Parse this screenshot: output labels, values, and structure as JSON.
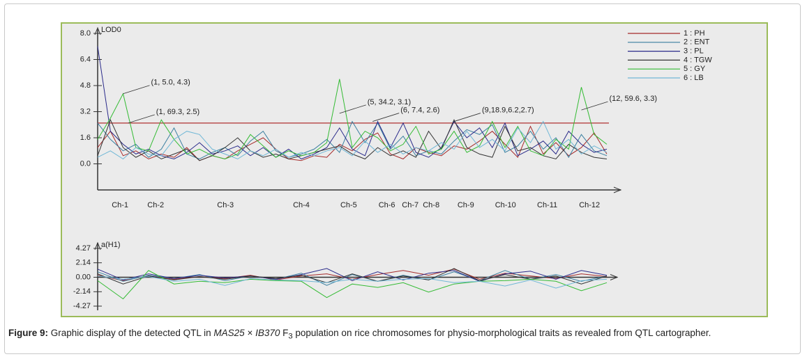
{
  "chart_data": [
    {
      "type": "line",
      "y_label": "LOD0",
      "xlim": [
        0,
        100
      ],
      "ylim": [
        -1.6,
        8.0
      ],
      "yticks": [
        {
          "value": 0,
          "label": "0.0"
        },
        1.6,
        3.2,
        4.8,
        6.4,
        {
          "value": 8,
          "label": "8.0"
        }
      ],
      "xticks": [
        {
          "value": 4.4,
          "label": "Ch-1"
        },
        {
          "value": 11.4,
          "label": "Ch-2"
        },
        {
          "value": 25.1,
          "label": "Ch-3"
        },
        {
          "value": 40,
          "label": "Ch-4"
        },
        {
          "value": 49.3,
          "label": "Ch-5"
        },
        {
          "value": 56.8,
          "label": "Ch-6"
        },
        {
          "value": 61.4,
          "label": "Ch-7"
        },
        {
          "value": 65.5,
          "label": "Ch-8"
        },
        {
          "value": 72.3,
          "label": "Ch-9"
        },
        {
          "value": 80.1,
          "label": "Ch-10"
        },
        {
          "value": 88.3,
          "label": "Ch-11"
        },
        {
          "value": 96.6,
          "label": "Ch-12"
        }
      ],
      "threshold": 2.5,
      "threshold_color": "#b03030",
      "x": [
        0,
        2.5,
        5,
        7.5,
        10,
        12.5,
        15,
        17.5,
        20,
        22.5,
        25,
        27.5,
        30,
        32.5,
        35,
        37.5,
        40,
        42.5,
        45,
        47.5,
        50,
        52.5,
        55,
        57.5,
        60,
        62.5,
        65,
        67.5,
        70,
        72.5,
        75,
        77.5,
        80,
        82.5,
        85,
        87.5,
        90,
        92.5,
        95,
        97.5,
        100
      ],
      "series": [
        {
          "name": "1 : PH",
          "color": "#a52a2a",
          "values": [
            1.0,
            2.0,
            0.5,
            0.8,
            0.3,
            0.6,
            0.4,
            1.0,
            0.2,
            0.5,
            0.3,
            0.8,
            1.2,
            1.6,
            0.9,
            0.3,
            0.2,
            0.5,
            0.4,
            1.2,
            0.8,
            1.5,
            1.9,
            0.6,
            0.3,
            1.0,
            0.7,
            0.5,
            1.1,
            0.9,
            1.4,
            2.0,
            1.2,
            0.4,
            2.3,
            0.6,
            1.3,
            0.5,
            1.0,
            1.9,
            0.6
          ]
        },
        {
          "name": "2 : ENT",
          "color": "#3a7fa0",
          "values": [
            2.5,
            1.5,
            0.8,
            1.2,
            0.4,
            0.9,
            2.2,
            0.6,
            0.3,
            0.7,
            1.0,
            0.5,
            1.4,
            2.0,
            0.8,
            0.4,
            0.6,
            0.9,
            1.5,
            0.7,
            2.6,
            1.3,
            2.5,
            0.9,
            1.7,
            0.5,
            0.8,
            0.6,
            1.4,
            2.1,
            1.8,
            2.4,
            0.7,
            1.1,
            2.0,
            0.9,
            1.6,
            0.4,
            1.8,
            0.8,
            0.5
          ]
        },
        {
          "name": "3 : PL",
          "color": "#2a2a8a",
          "values": [
            7.2,
            2.0,
            1.2,
            0.6,
            0.9,
            0.5,
            0.3,
            0.7,
            1.3,
            0.6,
            0.8,
            1.1,
            0.5,
            1.0,
            0.4,
            0.9,
            0.3,
            0.6,
            1.0,
            2.2,
            0.9,
            0.5,
            2.6,
            1.0,
            2.5,
            0.7,
            0.4,
            1.0,
            2.6,
            1.6,
            2.2,
            1.0,
            2.5,
            0.5,
            0.9,
            1.4,
            0.6,
            2.0,
            1.2,
            0.7,
            0.9
          ]
        },
        {
          "name": "4 : TGW",
          "color": "#333333",
          "values": [
            0.5,
            2.7,
            1.0,
            0.4,
            0.8,
            0.3,
            0.6,
            0.9,
            0.2,
            0.5,
            1.0,
            1.6,
            0.8,
            0.4,
            0.6,
            0.3,
            0.5,
            0.7,
            0.9,
            1.1,
            0.6,
            0.3,
            1.0,
            0.5,
            0.8,
            0.4,
            2.0,
            0.9,
            2.7,
            1.0,
            0.6,
            0.4,
            2.3,
            0.8,
            1.0,
            0.5,
            0.3,
            1.2,
            0.7,
            0.4,
            0.3
          ]
        },
        {
          "name": "5 : GY",
          "color": "#33bb33",
          "values": [
            1.5,
            2.8,
            4.3,
            1.0,
            0.8,
            2.7,
            1.5,
            0.6,
            0.9,
            0.5,
            0.3,
            0.6,
            1.8,
            1.1,
            0.4,
            0.8,
            0.5,
            0.7,
            1.3,
            5.2,
            1.0,
            2.0,
            1.6,
            0.8,
            1.2,
            2.3,
            0.6,
            0.9,
            2.0,
            0.7,
            1.1,
            2.6,
            1.0,
            2.3,
            0.8,
            0.5,
            1.5,
            0.9,
            4.7,
            1.8,
            1.2
          ]
        },
        {
          "name": "6 : LB",
          "color": "#6fb7d6",
          "values": [
            0.4,
            0.8,
            0.3,
            1.0,
            0.6,
            0.5,
            1.5,
            2.0,
            1.8,
            0.9,
            0.6,
            0.3,
            0.8,
            0.5,
            0.9,
            0.4,
            0.7,
            0.5,
            0.8,
            1.0,
            0.5,
            1.4,
            0.7,
            1.2,
            0.6,
            1.0,
            0.8,
            1.3,
            0.9,
            2.0,
            1.0,
            1.5,
            0.8,
            2.2,
            1.3,
            2.6,
            0.9,
            1.5,
            0.6,
            1.1,
            0.7
          ]
        }
      ],
      "annotations": [
        {
          "text": "(1, 5.0, 4.3)",
          "x": 5,
          "y": 4.3
        },
        {
          "text": "(1, 69.3, 2.5)",
          "x": 6,
          "y": 2.5
        },
        {
          "text": "(5, 34.2, 3.1)",
          "x": 47.5,
          "y": 3.1
        },
        {
          "text": "(6, 7.4, 2.6)",
          "x": 54,
          "y": 2.6
        },
        {
          "text": "(9,18.9,6.2,2.7)",
          "x": 70,
          "y": 2.6
        },
        {
          "text": "(12, 59.6, 3.3)",
          "x": 95,
          "y": 3.3
        }
      ]
    },
    {
      "type": "line",
      "y_label": "a(H1)",
      "xlim": [
        0,
        100
      ],
      "ylim": [
        -4.27,
        4.27
      ],
      "yticks": [
        4.27,
        2.14,
        {
          "value": 0,
          "label": "0.00"
        },
        -2.14,
        -4.27
      ],
      "x": [
        0,
        5,
        10,
        15,
        20,
        25,
        30,
        35,
        40,
        45,
        50,
        55,
        60,
        65,
        70,
        75,
        80,
        85,
        90,
        95,
        100
      ],
      "series": [
        {
          "name": "1 : PH",
          "color": "#a52a2a",
          "values": [
            0.3,
            -0.5,
            0.2,
            -0.3,
            0.1,
            -0.2,
            0.3,
            -0.4,
            0.2,
            0.5,
            -0.3,
            0.4,
            1.0,
            0.3,
            1.2,
            -0.3,
            0.6,
            0.2,
            -0.2,
            0.5,
            0.1
          ]
        },
        {
          "name": "2 : ENT",
          "color": "#3a7fa0",
          "values": [
            0.8,
            -0.6,
            0.3,
            -0.2,
            0.4,
            -0.5,
            0.2,
            -0.3,
            0.6,
            -1.2,
            0.4,
            -0.6,
            0.3,
            -0.4,
            0.8,
            -0.5,
            1.0,
            -0.3,
            0.4,
            -0.6,
            0.2
          ]
        },
        {
          "name": "3 : PL",
          "color": "#2a2a8a",
          "values": [
            1.2,
            -0.4,
            0.5,
            -0.2,
            0.3,
            -0.1,
            0.2,
            -0.3,
            0.4,
            1.3,
            -0.5,
            0.8,
            -0.4,
            0.6,
            1.0,
            -0.6,
            0.5,
            0.9,
            -0.3,
            1.0,
            0.3
          ]
        },
        {
          "name": "4 : TGW",
          "color": "#333333",
          "values": [
            0.5,
            -1.0,
            0.2,
            -0.4,
            0.1,
            -0.3,
            0.2,
            -0.2,
            0.3,
            -0.8,
            0.5,
            -0.6,
            0.2,
            -0.4,
            1.3,
            -0.5,
            0.4,
            -0.3,
            0.2,
            -1.0,
            0.2
          ]
        },
        {
          "name": "5 : GY",
          "color": "#33bb33",
          "values": [
            -0.5,
            -3.2,
            1.0,
            -1.0,
            -0.6,
            -0.8,
            -0.3,
            -0.5,
            -0.6,
            -3.0,
            -1.0,
            -1.5,
            -0.8,
            -2.2,
            -1.0,
            -0.6,
            -0.5,
            -0.3,
            -0.6,
            -2.0,
            -0.8
          ]
        },
        {
          "name": "6 : LB",
          "color": "#6fb7d6",
          "values": [
            0.2,
            -0.3,
            0.1,
            -0.6,
            -0.3,
            -1.2,
            -0.2,
            -0.4,
            -0.5,
            -0.8,
            -0.3,
            -0.6,
            -0.3,
            -0.2,
            -0.8,
            -0.6,
            -1.3,
            -0.4,
            -1.6,
            -0.5,
            -0.3
          ]
        }
      ]
    }
  ],
  "caption": {
    "label": "Figure 9:",
    "text_1": " Graphic display of the detected QTL in ",
    "species_1": "MAS25",
    "sep": " × ",
    "species_2": "IB370",
    "gen": " F",
    "sub": "3",
    "text_2": " population on rice chromosomes for physio-morphological traits as revealed from QTL cartographer."
  }
}
